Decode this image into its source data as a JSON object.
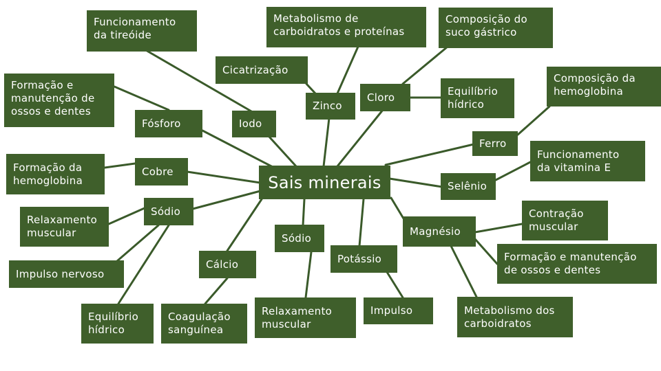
{
  "center": "Sais minerais",
  "nodes": {
    "funcionamento_tireoide": "Funcionamento\nda tireóide",
    "metabolismo_carb_prot": "Metabolismo de\ncarboidratos e proteínas",
    "composicao_suco": "Composição do\nsuco gástrico",
    "cicatrizacao": "Cicatrização",
    "composicao_hemoglobina": "Composição da\nhemoglobina",
    "formacao_ossos_1": "Formação e\nmanutenção de\nossos e dentes",
    "zinco": "Zinco",
    "cloro": "Cloro",
    "equilibrio_hidrico_1": "Equilíbrio\nhídrico",
    "fosforo": "Fósforo",
    "iodo": "Iodo",
    "ferro": "Ferro",
    "funcionamento_vit_e": "Funcionamento\nda vitamina E",
    "formacao_hemoglobina": "Formação da\nhemoglobina",
    "cobre": "Cobre",
    "selenio": "Selênio",
    "sodio_1": "Sódio",
    "relaxamento_1": "Relaxamento\nmuscular",
    "contracao": "Contração\nmuscular",
    "sodio_2": "Sódio",
    "magnesio": "Magnésio",
    "calcio": "Cálcio",
    "potassio": "Potássio",
    "formacao_ossos_2": "Formação e manutenção\nde ossos e dentes",
    "impulso_nervoso": "Impulso nervoso",
    "relaxamento_2": "Relaxamento\nmuscular",
    "impulso": "Impulso",
    "metabolismo_carb": "Metabolismo dos\ncarboidratos",
    "equilibrio_hidrico_2": "Equilíbrio\nhídrico",
    "coagulacao": "Coagulação\nsanguínea"
  },
  "colors": {
    "box": "#3f5f2b",
    "line": "#3a5a2a",
    "text": "#ffffff"
  }
}
